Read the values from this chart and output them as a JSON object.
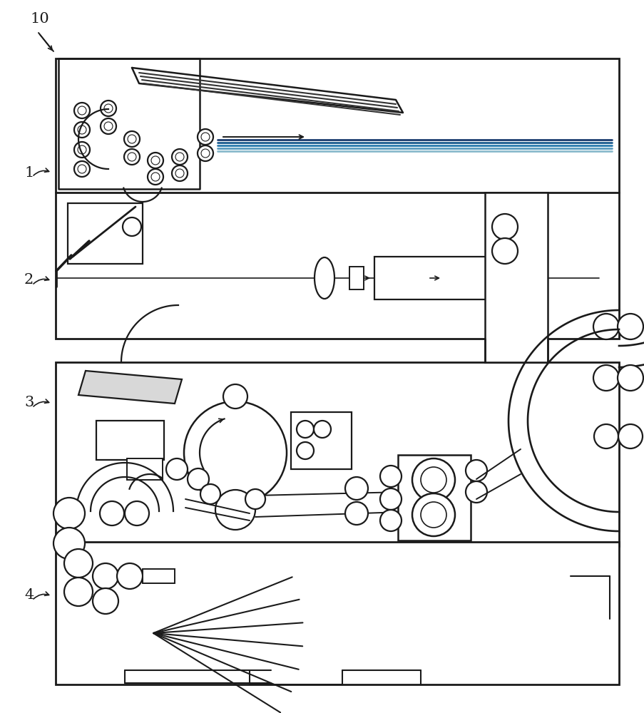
{
  "bg_color": "#ffffff",
  "lc": "#1a1a1a",
  "lw": 1.6,
  "fig_width": 9.04,
  "fig_height": 10.0
}
